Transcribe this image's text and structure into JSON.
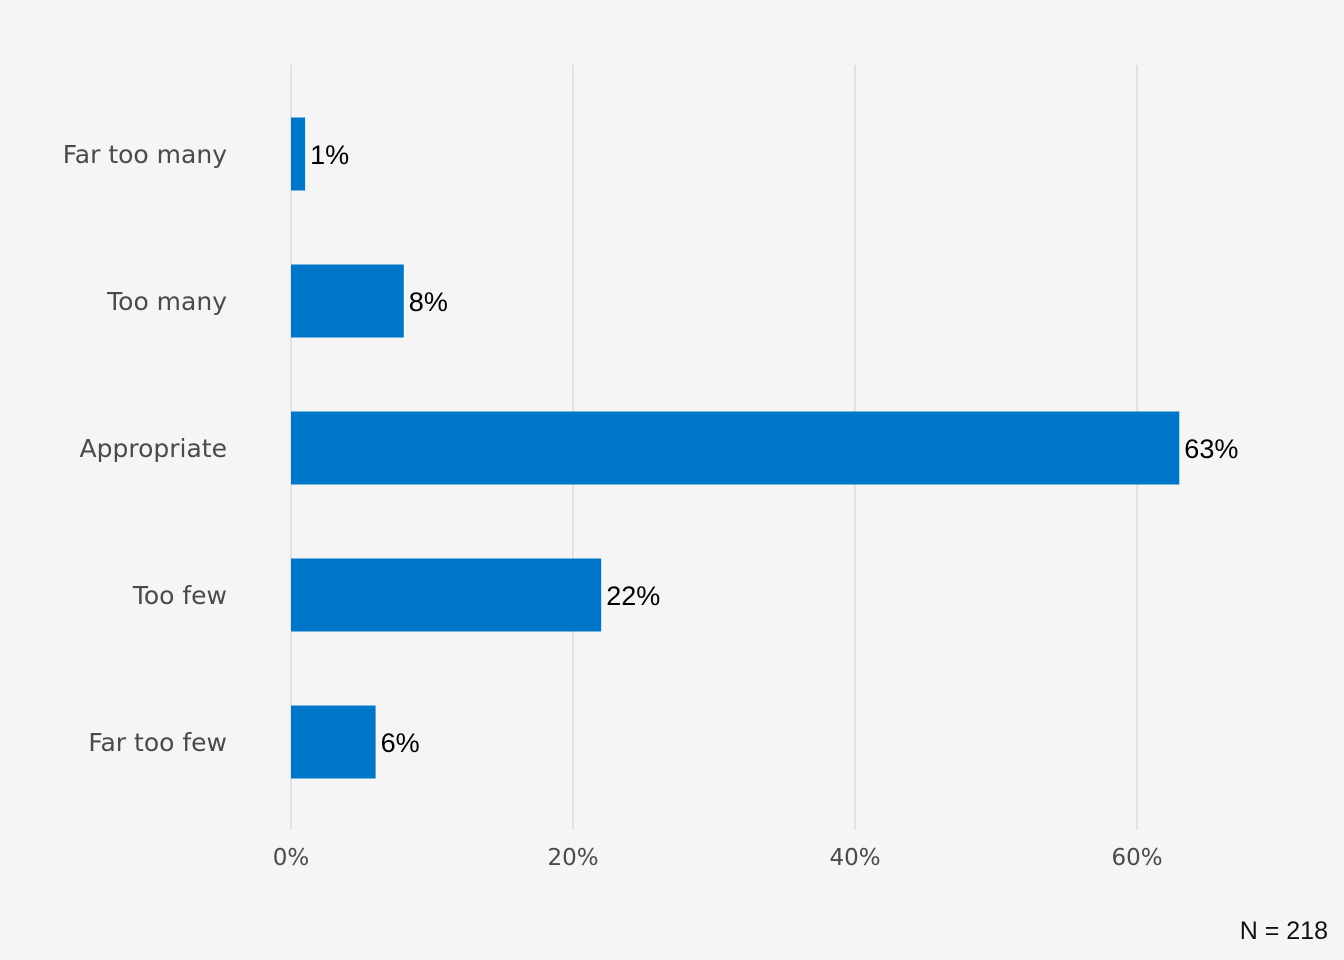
{
  "chart_data": {
    "type": "bar",
    "orientation": "horizontal",
    "categories": [
      "Far too many",
      "Too many",
      "Appropriate",
      "Too few",
      "Far too few"
    ],
    "values": [
      1,
      8,
      63,
      22,
      6
    ],
    "data_labels": [
      "1%",
      "8%",
      "63%",
      "22%",
      "6%"
    ],
    "xlim": [
      0,
      70
    ],
    "xticks": [
      0,
      20,
      40,
      60
    ],
    "xtick_labels": [
      "0%",
      "20%",
      "40%",
      "60%"
    ],
    "grid": true,
    "bar_color": "#0076c8",
    "background_color": "#f5f5f5",
    "legend": "none",
    "note": "N = 218"
  }
}
